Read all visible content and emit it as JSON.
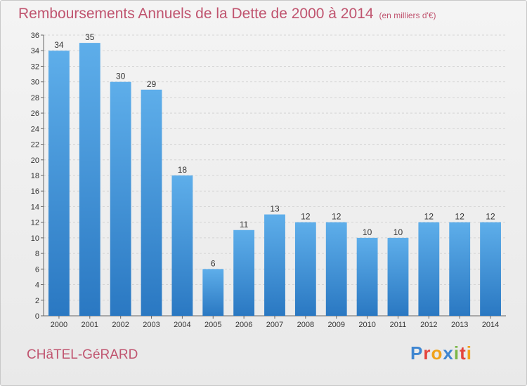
{
  "header": {
    "title": "Remboursements Annuels de la Dette de 2000 à 2014",
    "unit": "(en milliers d'€)"
  },
  "footer": {
    "commune": "CHâTEL-GéRARD",
    "logo": "Proxiti"
  },
  "colors": {
    "bar_light": "#5eaeea",
    "bar_dark": "#2a78c2",
    "title": "#c0546f"
  },
  "chart_data": {
    "type": "bar",
    "title": "Remboursements Annuels de la Dette de 2000 à 2014",
    "ylabel": "en milliers d'€",
    "xlabel": "",
    "categories": [
      "2000",
      "2001",
      "2002",
      "2003",
      "2004",
      "2005",
      "2006",
      "2007",
      "2008",
      "2009",
      "2010",
      "2011",
      "2012",
      "2013",
      "2014"
    ],
    "values": [
      34,
      35,
      30,
      29,
      18,
      6,
      11,
      13,
      12,
      12,
      10,
      10,
      12,
      12,
      12
    ],
    "ylim": [
      0,
      36
    ],
    "yticks": [
      0,
      2,
      4,
      6,
      8,
      10,
      12,
      14,
      16,
      18,
      20,
      22,
      24,
      26,
      28,
      30,
      32,
      34,
      36
    ],
    "grid": true
  }
}
